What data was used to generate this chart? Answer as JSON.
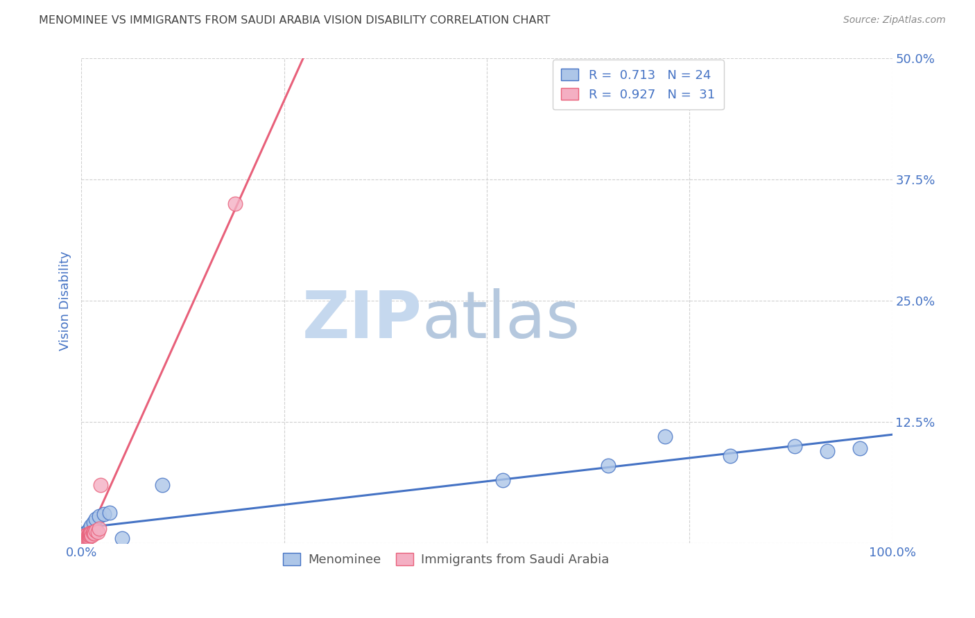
{
  "title": "MENOMINEE VS IMMIGRANTS FROM SAUDI ARABIA VISION DISABILITY CORRELATION CHART",
  "source": "Source: ZipAtlas.com",
  "ylabel": "Vision Disability",
  "xlim": [
    0.0,
    1.0
  ],
  "ylim": [
    0.0,
    0.5
  ],
  "yticks": [
    0.0,
    0.125,
    0.25,
    0.375,
    0.5
  ],
  "ytick_labels": [
    "",
    "12.5%",
    "25.0%",
    "37.5%",
    "50.0%"
  ],
  "xticks": [
    0.0,
    0.25,
    0.5,
    0.75,
    1.0
  ],
  "xtick_labels": [
    "0.0%",
    "",
    "",
    "",
    "100.0%"
  ],
  "menominee_x": [
    0.001,
    0.002,
    0.003,
    0.004,
    0.005,
    0.006,
    0.007,
    0.008,
    0.01,
    0.012,
    0.015,
    0.018,
    0.022,
    0.028,
    0.035,
    0.05,
    0.1,
    0.52,
    0.65,
    0.72,
    0.8,
    0.88,
    0.92,
    0.96
  ],
  "menominee_y": [
    0.005,
    0.008,
    0.006,
    0.01,
    0.007,
    0.009,
    0.012,
    0.008,
    0.015,
    0.018,
    0.022,
    0.025,
    0.028,
    0.03,
    0.032,
    0.005,
    0.06,
    0.065,
    0.08,
    0.11,
    0.09,
    0.1,
    0.095,
    0.098
  ],
  "saudi_x": [
    0.001,
    0.002,
    0.002,
    0.003,
    0.003,
    0.004,
    0.004,
    0.005,
    0.005,
    0.006,
    0.006,
    0.007,
    0.007,
    0.008,
    0.008,
    0.009,
    0.009,
    0.01,
    0.01,
    0.011,
    0.011,
    0.012,
    0.013,
    0.014,
    0.015,
    0.016,
    0.018,
    0.02,
    0.022,
    0.024,
    0.19
  ],
  "saudi_y": [
    0.004,
    0.005,
    0.006,
    0.005,
    0.007,
    0.006,
    0.008,
    0.005,
    0.007,
    0.006,
    0.008,
    0.007,
    0.009,
    0.006,
    0.008,
    0.007,
    0.009,
    0.008,
    0.01,
    0.009,
    0.011,
    0.01,
    0.008,
    0.011,
    0.012,
    0.01,
    0.013,
    0.012,
    0.015,
    0.06,
    0.35
  ],
  "menominee_R": 0.713,
  "menominee_N": 24,
  "saudi_R": 0.927,
  "saudi_N": 31,
  "menominee_color": "#adc6e8",
  "menominee_line_color": "#4472c4",
  "saudi_color": "#f4afc3",
  "saudi_line_color": "#e8607a",
  "background_color": "#ffffff",
  "grid_color": "#d0d0d0",
  "title_color": "#404040",
  "axis_label_color": "#4472c4",
  "watermark_zip_color": "#c8d8ee",
  "watermark_atlas_color": "#b8c8e0",
  "legend_R_N_color": "#4472c4",
  "legend_text_color": "#333333"
}
